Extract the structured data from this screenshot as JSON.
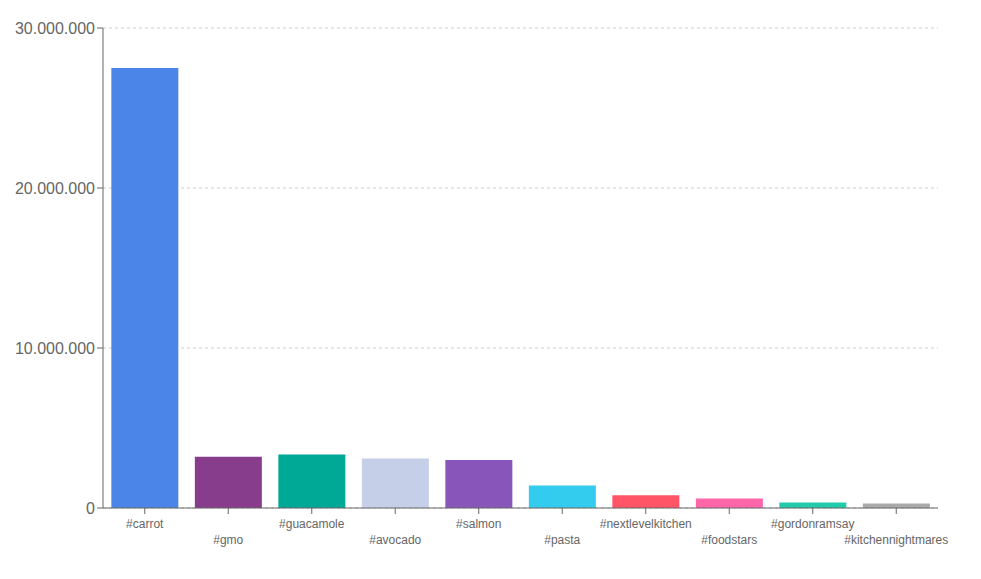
{
  "chart_data": {
    "type": "bar",
    "categories": [
      "#carrot",
      "#gmo",
      "#guacamole",
      "#avocado",
      "#salmon",
      "#pasta",
      "#nextlevelkitchen",
      "#foodstars",
      "#gordonramsay",
      "#kitchennightmares"
    ],
    "values": [
      27500000,
      3200000,
      3350000,
      3100000,
      3000000,
      1400000,
      800000,
      600000,
      350000,
      280000
    ],
    "colors": [
      "#4C85E8",
      "#883C8C",
      "#00A896",
      "#C5D0E8",
      "#8855BB",
      "#33CCEE",
      "#FF5566",
      "#FF66AA",
      "#22CCAA",
      "#AAAAAA"
    ],
    "ylim": [
      0,
      30000000
    ],
    "yticks": [
      0,
      {
        "value": 10000000,
        "label": "10.000.000"
      },
      {
        "value": 20000000,
        "label": "20.000.000"
      },
      {
        "value": 30000000,
        "label": "30.000.000"
      }
    ],
    "grid": true
  }
}
